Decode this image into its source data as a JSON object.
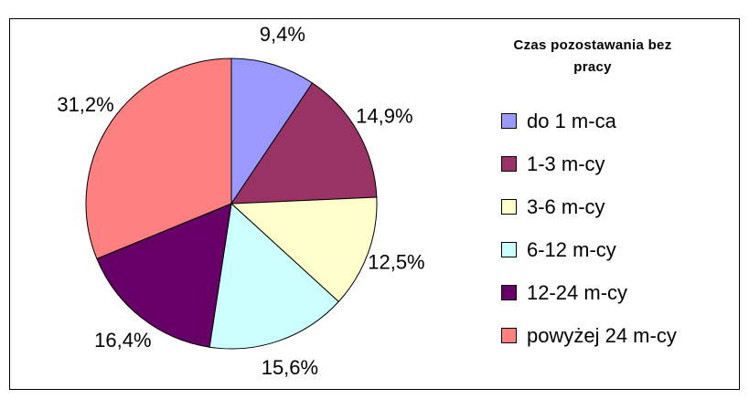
{
  "chart_data": {
    "type": "pie",
    "legend_title": "Czas pozostawania bez pracy",
    "categories": [
      "do 1 m-ca",
      "1-3 m-cy",
      "3-6 m-cy",
      "6-12 m-cy",
      "12-24 m-cy",
      "powyżej 24 m-cy"
    ],
    "values": [
      9.4,
      14.9,
      12.5,
      15.6,
      16.4,
      31.2
    ],
    "value_labels": [
      "9,4%",
      "14,9%",
      "12,5%",
      "15,6%",
      "16,4%",
      "31,2%"
    ],
    "colors": [
      "#9999ff",
      "#993366",
      "#ffffcc",
      "#ccffff",
      "#660066",
      "#ff8080"
    ],
    "legend": "right"
  }
}
